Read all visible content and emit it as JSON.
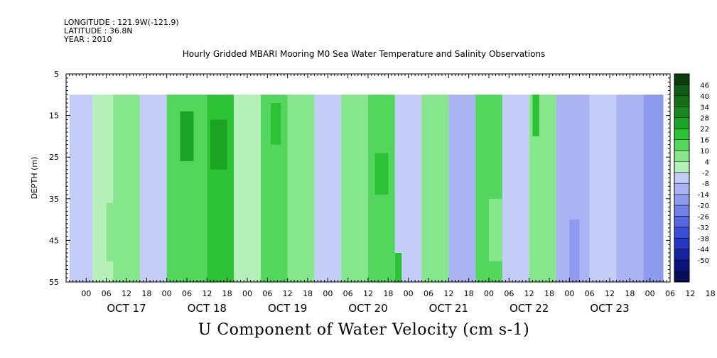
{
  "header": {
    "longitude": "LONGITUDE : 121.9W(-121.9)",
    "latitude": "LATITUDE : 36.8N",
    "year": "YEAR : 2010"
  },
  "chart_data": {
    "type": "heatmap",
    "title": "Hourly Gridded MBARI Mooring M0 Sea Water Temperature and Salinity Observations",
    "variable": "U Component of Water Velocity (cm s-1)",
    "ylabel": "DEPTH (m)",
    "y_ticks": [
      5,
      15,
      25,
      35,
      45,
      55
    ],
    "ylim": [
      5,
      55
    ],
    "y_inverted": true,
    "data_depth_range": [
      10,
      55
    ],
    "x_start_hour": "OCT 16 18",
    "x_hour_ticks": [
      "00",
      "06",
      "12",
      "18",
      "00",
      "06",
      "12",
      "18",
      "00",
      "06",
      "12",
      "18",
      "00",
      "06",
      "12",
      "18",
      "00",
      "06",
      "12",
      "18",
      "00",
      "06",
      "12",
      "18",
      "00",
      "06",
      "12",
      "18",
      "00",
      "06",
      "12",
      "18"
    ],
    "x_day_labels": [
      "OCT 17",
      "OCT 18",
      "OCT 19",
      "OCT 20",
      "OCT 21",
      "OCT 22",
      "OCT 23"
    ],
    "colorbar": {
      "levels": [
        "46",
        "40",
        "34",
        "28",
        "22",
        "16",
        "10",
        "4",
        "-2",
        "-8",
        "-14",
        "-20",
        "-26",
        "-32",
        "-38",
        "-44",
        "-50"
      ],
      "colors": [
        "#0a3d0a",
        "#0f5a14",
        "#137019",
        "#178a1f",
        "#1ca524",
        "#2bc235",
        "#52d65c",
        "#86e68c",
        "#b5f0b8",
        "#c4ccf8",
        "#aab4f2",
        "#8e9aec",
        "#7281e6",
        "#5667df",
        "#3b4ed6",
        "#2538c4",
        "#1523a0",
        "#0a1478",
        "#060d55"
      ],
      "value_lines": [
        "46",
        "40",
        "34",
        "28",
        "22",
        "16",
        "10",
        "4",
        "-2",
        "-8",
        "-14",
        "-20",
        "-26",
        "-32",
        "-38",
        "-44",
        "-50"
      ]
    },
    "bands": [
      {
        "start": 1,
        "end": 8,
        "value": -8
      },
      {
        "start": 8,
        "end": 14,
        "value": -2
      },
      {
        "start": 14,
        "end": 22,
        "value": 4
      },
      {
        "start": 22,
        "end": 30,
        "value": -8
      },
      {
        "start": 30,
        "end": 42,
        "value": 10
      },
      {
        "start": 42,
        "end": 50,
        "value": 16
      },
      {
        "start": 50,
        "end": 58,
        "value": -2
      },
      {
        "start": 58,
        "end": 66,
        "value": 10
      },
      {
        "start": 66,
        "end": 74,
        "value": 4
      },
      {
        "start": 74,
        "end": 82,
        "value": -8
      },
      {
        "start": 82,
        "end": 90,
        "value": 4
      },
      {
        "start": 90,
        "end": 98,
        "value": 10
      },
      {
        "start": 98,
        "end": 106,
        "value": -8
      },
      {
        "start": 106,
        "end": 114,
        "value": 4
      },
      {
        "start": 114,
        "end": 122,
        "value": -14
      },
      {
        "start": 122,
        "end": 130,
        "value": 10
      },
      {
        "start": 130,
        "end": 138,
        "value": -8
      },
      {
        "start": 138,
        "end": 146,
        "value": 4
      },
      {
        "start": 146,
        "end": 156,
        "value": -14
      },
      {
        "start": 156,
        "end": 164,
        "value": -8
      },
      {
        "start": 164,
        "end": 172,
        "value": -14
      },
      {
        "start": 172,
        "end": 178,
        "value": -20
      }
    ],
    "patches": [
      {
        "t0": 34,
        "t1": 38,
        "d0": 14,
        "d1": 26,
        "value": 22
      },
      {
        "t0": 43,
        "t1": 48,
        "d0": 16,
        "d1": 28,
        "value": 22
      },
      {
        "t0": 61,
        "t1": 64,
        "d0": 12,
        "d1": 22,
        "value": 16
      },
      {
        "t0": 92,
        "t1": 96,
        "d0": 24,
        "d1": 34,
        "value": 16
      },
      {
        "t0": 98,
        "t1": 100,
        "d0": 48,
        "d1": 55,
        "value": 16
      },
      {
        "t0": 139,
        "t1": 141,
        "d0": 10,
        "d1": 20,
        "value": 16
      },
      {
        "t0": 150,
        "t1": 153,
        "d0": 40,
        "d1": 55,
        "value": -20
      },
      {
        "t0": 12,
        "t1": 17,
        "d0": 36,
        "d1": 50,
        "value": 4
      },
      {
        "t0": 126,
        "t1": 130,
        "d0": 35,
        "d1": 50,
        "value": 4
      }
    ]
  }
}
